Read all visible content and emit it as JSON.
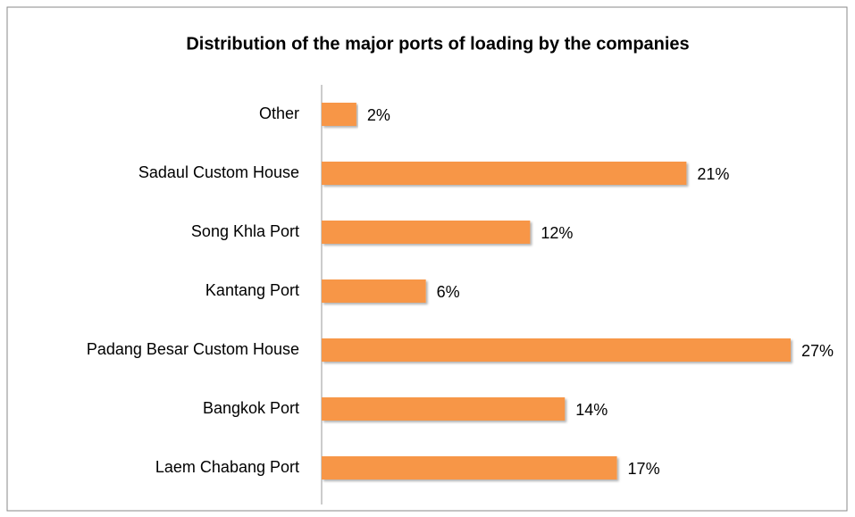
{
  "chart_data": {
    "type": "bar",
    "orientation": "horizontal",
    "title": "Distribution of the major ports of loading by the companies",
    "categories": [
      "Other",
      "Sadaul Custom House",
      "Song Khla Port",
      "Kantang Port",
      "Padang Besar Custom House",
      "Bangkok Port",
      "Laem Chabang Port"
    ],
    "values": [
      2,
      21,
      12,
      6,
      27,
      14,
      17
    ],
    "value_labels": [
      "2%",
      "21%",
      "12%",
      "6%",
      "27%",
      "14%",
      "17%"
    ],
    "color": "#f79646"
  }
}
